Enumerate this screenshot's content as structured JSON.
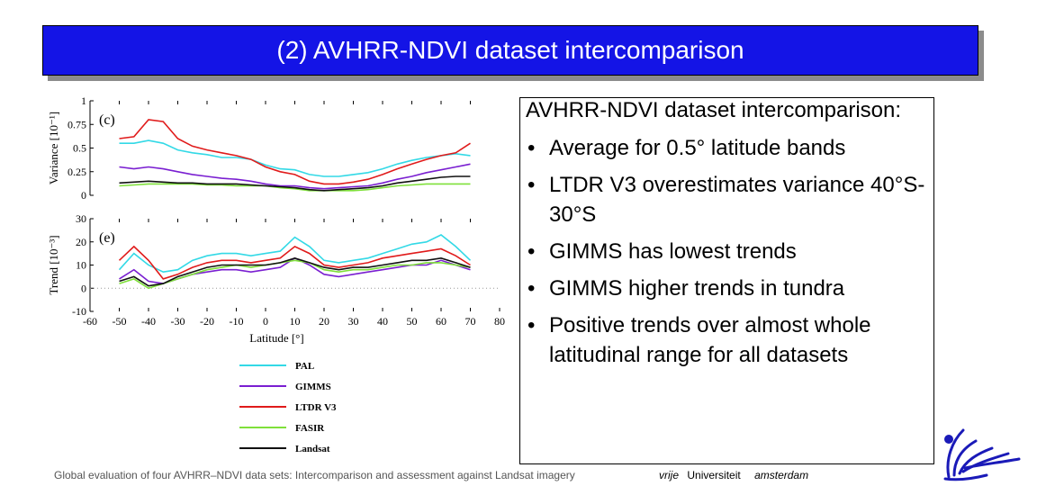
{
  "slide": {
    "title": "(2) AVHRR-NDVI dataset intercomparison",
    "heading": "AVHRR-NDVI dataset intercomparison:",
    "bullets": [
      "Average for 0.5° latitude bands",
      "LTDR V3 overestimates variance 40°S-30°S",
      "GIMMS has lowest trends",
      "GIMMS higher trends in tundra",
      "Positive trends over almost whole latitudinal range for all datasets"
    ],
    "bullet_char": "•",
    "footer": "Global evaluation of four AVHRR–NDVI data sets: Intercomparison and assessment against Landsat imagery",
    "university": {
      "word1": "vrije",
      "word2": "Universiteit",
      "word3": "amsterdam"
    },
    "logo_icon": "griffin-logo-icon",
    "colors": {
      "title_bar": "#1414e6",
      "title_text": "#ffffff",
      "PAL": "#33d9e6",
      "GIMMS": "#7a1fd1",
      "LTDR V3": "#e01b1b",
      "FASIR": "#7fe03a",
      "Landsat": "#111111",
      "logo": "#1a1ab8"
    }
  },
  "chart_data": [
    {
      "type": "line",
      "panel_label": "(c)",
      "ylabel": "Variance [10⁻¹]",
      "ylim": [
        0,
        1
      ],
      "yticks": [
        "0",
        "0.25",
        "0.5",
        "0.75",
        "1"
      ],
      "xlim": [
        -60,
        80
      ],
      "series": [
        {
          "name": "PAL",
          "x": [
            -50,
            -45,
            -40,
            -35,
            -30,
            -25,
            -20,
            -15,
            -10,
            -5,
            0,
            5,
            10,
            15,
            20,
            25,
            30,
            35,
            40,
            45,
            50,
            55,
            60,
            65,
            70
          ],
          "values": [
            0.55,
            0.55,
            0.58,
            0.55,
            0.48,
            0.45,
            0.43,
            0.4,
            0.4,
            0.38,
            0.32,
            0.28,
            0.27,
            0.22,
            0.2,
            0.2,
            0.22,
            0.24,
            0.28,
            0.33,
            0.37,
            0.4,
            0.42,
            0.44,
            0.42
          ]
        },
        {
          "name": "GIMMS",
          "x": [
            -50,
            -45,
            -40,
            -35,
            -30,
            -25,
            -20,
            -15,
            -10,
            -5,
            0,
            5,
            10,
            15,
            20,
            25,
            30,
            35,
            40,
            45,
            50,
            55,
            60,
            65,
            70
          ],
          "values": [
            0.3,
            0.28,
            0.3,
            0.28,
            0.25,
            0.22,
            0.2,
            0.18,
            0.17,
            0.15,
            0.12,
            0.1,
            0.1,
            0.08,
            0.07,
            0.08,
            0.09,
            0.1,
            0.13,
            0.17,
            0.2,
            0.24,
            0.27,
            0.3,
            0.33
          ]
        },
        {
          "name": "LTDR V3",
          "x": [
            -50,
            -45,
            -40,
            -35,
            -30,
            -25,
            -20,
            -15,
            -10,
            -5,
            0,
            5,
            10,
            15,
            20,
            25,
            30,
            35,
            40,
            45,
            50,
            55,
            60,
            65,
            70
          ],
          "values": [
            0.6,
            0.62,
            0.8,
            0.78,
            0.6,
            0.52,
            0.48,
            0.45,
            0.42,
            0.38,
            0.3,
            0.25,
            0.22,
            0.15,
            0.12,
            0.12,
            0.14,
            0.17,
            0.22,
            0.28,
            0.33,
            0.38,
            0.42,
            0.45,
            0.55
          ]
        },
        {
          "name": "FASIR",
          "x": [
            -50,
            -45,
            -40,
            -35,
            -30,
            -25,
            -20,
            -15,
            -10,
            -5,
            0,
            5,
            10,
            15,
            20,
            25,
            30,
            35,
            40,
            45,
            50,
            55,
            60,
            65,
            70
          ],
          "values": [
            0.1,
            0.11,
            0.12,
            0.12,
            0.12,
            0.12,
            0.11,
            0.11,
            0.1,
            0.1,
            0.1,
            0.08,
            0.07,
            0.05,
            0.05,
            0.05,
            0.05,
            0.06,
            0.08,
            0.1,
            0.11,
            0.12,
            0.12,
            0.12,
            0.12
          ]
        },
        {
          "name": "Landsat",
          "x": [
            -50,
            -45,
            -40,
            -35,
            -30,
            -25,
            -20,
            -15,
            -10,
            -5,
            0,
            5,
            10,
            15,
            20,
            25,
            30,
            35,
            40,
            45,
            50,
            55,
            60,
            65,
            70
          ],
          "values": [
            0.13,
            0.14,
            0.15,
            0.14,
            0.13,
            0.13,
            0.12,
            0.12,
            0.12,
            0.11,
            0.1,
            0.09,
            0.08,
            0.06,
            0.05,
            0.06,
            0.07,
            0.08,
            0.1,
            0.13,
            0.15,
            0.17,
            0.19,
            0.2,
            0.2
          ]
        }
      ]
    },
    {
      "type": "line",
      "panel_label": "(e)",
      "ylabel": "Trend [10⁻³]",
      "ylim": [
        -10,
        30
      ],
      "yticks": [
        "-10",
        "0",
        "10",
        "20",
        "30"
      ],
      "xlim": [
        -60,
        80
      ],
      "xticks": [
        "-60",
        "-50",
        "-40",
        "-30",
        "-20",
        "-10",
        "0",
        "10",
        "20",
        "30",
        "40",
        "50",
        "60",
        "70",
        "80"
      ],
      "xlabel": "Latitude [°]",
      "legend_position": "below",
      "series": [
        {
          "name": "PAL",
          "x": [
            -50,
            -45,
            -40,
            -35,
            -30,
            -25,
            -20,
            -15,
            -10,
            -5,
            0,
            5,
            10,
            15,
            20,
            25,
            30,
            35,
            40,
            45,
            50,
            55,
            60,
            65,
            70
          ],
          "values": [
            8,
            15,
            10,
            7,
            8,
            12,
            14,
            15,
            15,
            14,
            15,
            16,
            22,
            18,
            12,
            11,
            12,
            13,
            15,
            17,
            19,
            20,
            23,
            18,
            12
          ]
        },
        {
          "name": "GIMMS",
          "x": [
            -50,
            -45,
            -40,
            -35,
            -30,
            -25,
            -20,
            -15,
            -10,
            -5,
            0,
            5,
            10,
            15,
            20,
            25,
            30,
            35,
            40,
            45,
            50,
            55,
            60,
            65,
            70
          ],
          "values": [
            4,
            8,
            3,
            2,
            4,
            6,
            7,
            8,
            8,
            7,
            8,
            9,
            13,
            10,
            6,
            5,
            6,
            7,
            8,
            9,
            10,
            10,
            12,
            10,
            8
          ]
        },
        {
          "name": "LTDR V3",
          "x": [
            -50,
            -45,
            -40,
            -35,
            -30,
            -25,
            -20,
            -15,
            -10,
            -5,
            0,
            5,
            10,
            15,
            20,
            25,
            30,
            35,
            40,
            45,
            50,
            55,
            60,
            65,
            70
          ],
          "values": [
            12,
            18,
            12,
            4,
            6,
            9,
            11,
            12,
            12,
            11,
            12,
            13,
            18,
            15,
            10,
            9,
            10,
            11,
            13,
            14,
            15,
            16,
            17,
            14,
            10
          ]
        },
        {
          "name": "FASIR",
          "x": [
            -50,
            -45,
            -40,
            -35,
            -30,
            -25,
            -20,
            -15,
            -10,
            -5,
            0,
            5,
            10,
            15,
            20,
            25,
            30,
            35,
            40,
            45,
            50,
            55,
            60,
            65,
            70
          ],
          "values": [
            2,
            4,
            0,
            2,
            4,
            6,
            8,
            9,
            10,
            9,
            10,
            11,
            12,
            11,
            8,
            7,
            8,
            8,
            9,
            10,
            10,
            11,
            11,
            10,
            9
          ]
        },
        {
          "name": "Landsat",
          "x": [
            -50,
            -45,
            -40,
            -35,
            -30,
            -25,
            -20,
            -15,
            -10,
            -5,
            0,
            5,
            10,
            15,
            20,
            25,
            30,
            35,
            40,
            45,
            50,
            55,
            60,
            65,
            70
          ],
          "values": [
            3,
            5,
            1,
            2,
            5,
            7,
            9,
            10,
            10,
            10,
            10,
            11,
            13,
            11,
            9,
            8,
            9,
            9,
            10,
            11,
            12,
            12,
            13,
            11,
            9
          ]
        }
      ]
    }
  ]
}
